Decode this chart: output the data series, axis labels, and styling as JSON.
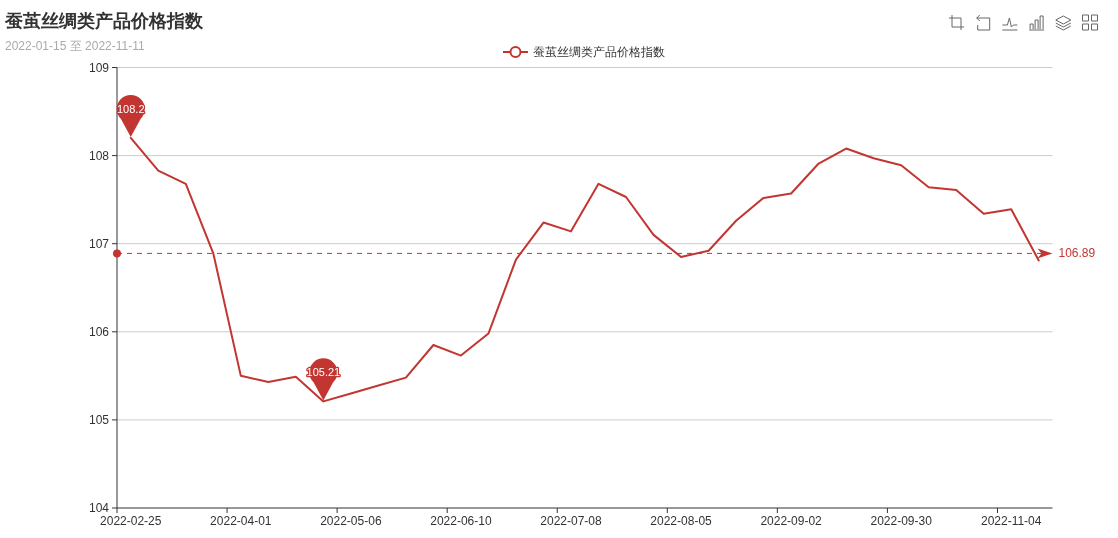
{
  "chart_data": {
    "type": "line",
    "title": "蚕茧丝绸类产品价格指数",
    "subtitle": "2022-01-15 至 2022-11-11",
    "categories": [
      "2022-02-25",
      null,
      null,
      null,
      "2022-04-01",
      null,
      null,
      null,
      "2022-05-06",
      null,
      null,
      null,
      "2022-06-10",
      null,
      null,
      null,
      "2022-07-08",
      null,
      null,
      null,
      "2022-08-05",
      null,
      null,
      null,
      "2022-09-02",
      null,
      null,
      null,
      "2022-09-30",
      null,
      null,
      null,
      "2022-11-04",
      null
    ],
    "series": [
      {
        "name": "蚕茧丝绸类产品价格指数",
        "color": "#c23531",
        "values": [
          108.2,
          107.83,
          107.68,
          106.89,
          105.5,
          105.43,
          105.49,
          105.21,
          105.3,
          105.39,
          105.48,
          105.85,
          105.73,
          105.98,
          106.82,
          107.24,
          107.14,
          107.68,
          107.53,
          107.1,
          106.85,
          106.92,
          107.26,
          107.52,
          107.57,
          107.91,
          108.08,
          107.97,
          107.89,
          107.64,
          107.61,
          107.34,
          107.39,
          106.81
        ]
      }
    ],
    "ylim": [
      104,
      109
    ],
    "yticks": [
      104,
      105,
      106,
      107,
      108,
      109
    ],
    "grid": "y",
    "legend": "top",
    "marker": "none",
    "line_style": "solid",
    "ref_lines": [
      {
        "axis": "y",
        "value": 106.89,
        "label": "106.89",
        "color": "#c23531",
        "line_style": "dashed"
      }
    ],
    "annotations": [
      {
        "text": "108.2",
        "x": "2022-02-25",
        "y": 108.2
      },
      {
        "text": "105.21",
        "y": 105.21
      }
    ]
  }
}
